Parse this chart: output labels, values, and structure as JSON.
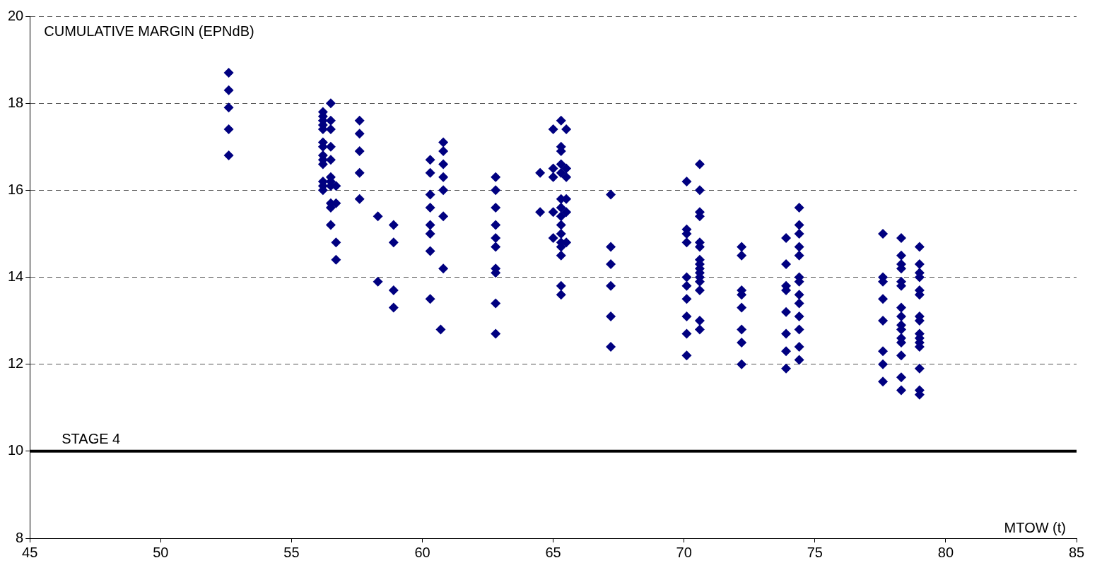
{
  "chart_data": {
    "type": "scatter",
    "xlabel": "MTOW (t)",
    "ylabel": "CUMULATIVE MARGIN (EPNdB)",
    "xlim": [
      45,
      85
    ],
    "xticks": [
      45,
      50,
      55,
      60,
      65,
      70,
      75,
      80,
      85
    ],
    "ylim": [
      8,
      20
    ],
    "yticks": [
      8,
      10,
      12,
      14,
      16,
      18,
      20
    ],
    "grid": "y",
    "marker": "diamond",
    "legend": false,
    "ref_lines": [
      {
        "axis": "y",
        "value": 10,
        "label": "STAGE 4",
        "color": "#000000",
        "line_style": "solid"
      }
    ],
    "series": [
      {
        "color": "#000080",
        "x": [
          52.6,
          52.6,
          52.6,
          52.6,
          52.6,
          56.2,
          56.2,
          56.2,
          56.2,
          56.2,
          56.2,
          56.2,
          56.2,
          56.2,
          56.2,
          56.2,
          56.2,
          56.2,
          56.5,
          56.5,
          56.5,
          56.5,
          56.5,
          56.5,
          56.5,
          56.5,
          56.5,
          56.5,
          56.5,
          56.7,
          56.7,
          56.7,
          56.7,
          57.6,
          57.6,
          57.6,
          57.6,
          57.6,
          58.3,
          58.3,
          58.9,
          58.9,
          58.9,
          58.9,
          60.3,
          60.3,
          60.3,
          60.3,
          60.3,
          60.3,
          60.3,
          60.3,
          60.8,
          60.8,
          60.8,
          60.8,
          60.8,
          60.8,
          60.8,
          60.7,
          62.8,
          62.8,
          62.8,
          62.8,
          62.8,
          62.8,
          62.8,
          62.8,
          62.8,
          62.8,
          64.5,
          64.5,
          65.0,
          65.0,
          65.0,
          65.0,
          65.0,
          65.3,
          65.3,
          65.3,
          65.3,
          65.3,
          65.3,
          65.3,
          65.3,
          65.3,
          65.3,
          65.3,
          65.3,
          65.3,
          65.3,
          65.3,
          65.5,
          65.5,
          65.5,
          65.5,
          65.5,
          65.5,
          67.2,
          67.2,
          67.2,
          67.2,
          67.2,
          67.2,
          70.1,
          70.1,
          70.1,
          70.1,
          70.1,
          70.1,
          70.1,
          70.1,
          70.1,
          70.1,
          70.6,
          70.6,
          70.6,
          70.6,
          70.6,
          70.6,
          70.6,
          70.6,
          70.6,
          70.6,
          70.6,
          70.6,
          70.6,
          70.6,
          70.6,
          72.2,
          72.2,
          72.2,
          72.2,
          72.2,
          72.2,
          72.2,
          72.2,
          73.9,
          73.9,
          73.9,
          73.9,
          73.9,
          73.9,
          73.9,
          73.9,
          74.4,
          74.4,
          74.4,
          74.4,
          74.4,
          74.4,
          74.4,
          74.4,
          74.4,
          74.4,
          74.4,
          74.4,
          74.4,
          77.6,
          77.6,
          77.6,
          77.6,
          77.6,
          77.6,
          77.6,
          77.6,
          78.3,
          78.3,
          78.3,
          78.3,
          78.3,
          78.3,
          78.3,
          78.3,
          78.3,
          78.3,
          78.3,
          78.3,
          78.3,
          78.3,
          78.3,
          79.0,
          79.0,
          79.0,
          79.0,
          79.0,
          79.0,
          79.0,
          79.0,
          79.0,
          79.0,
          79.0,
          79.0,
          79.0,
          79.0,
          79.0
        ],
        "values": [
          18.7,
          18.3,
          17.9,
          17.4,
          16.8,
          17.8,
          17.7,
          17.6,
          17.5,
          17.4,
          17.1,
          17.0,
          16.8,
          16.7,
          16.6,
          16.2,
          16.1,
          16.0,
          18.0,
          17.6,
          17.4,
          17.0,
          16.7,
          16.3,
          16.2,
          16.1,
          15.7,
          15.6,
          15.2,
          16.1,
          15.7,
          14.8,
          14.4,
          17.6,
          17.3,
          16.9,
          16.4,
          15.8,
          15.4,
          13.9,
          15.2,
          14.8,
          13.7,
          13.3,
          16.7,
          16.4,
          15.9,
          15.6,
          15.2,
          15.0,
          14.6,
          13.5,
          17.1,
          16.9,
          16.6,
          16.3,
          16.0,
          15.4,
          14.2,
          12.8,
          16.3,
          16.0,
          15.6,
          15.2,
          14.9,
          14.7,
          14.2,
          14.1,
          13.4,
          12.7,
          16.4,
          15.5,
          17.4,
          16.5,
          16.3,
          15.5,
          14.9,
          17.6,
          17.0,
          16.9,
          16.6,
          16.4,
          15.8,
          15.6,
          15.4,
          15.2,
          15.0,
          14.8,
          14.7,
          14.5,
          13.8,
          13.6,
          17.4,
          16.5,
          16.3,
          15.8,
          15.5,
          14.8,
          15.9,
          14.7,
          14.3,
          13.8,
          13.1,
          12.4,
          16.2,
          15.1,
          15.0,
          14.8,
          14.0,
          13.8,
          13.5,
          13.1,
          12.7,
          12.2,
          16.6,
          16.0,
          15.5,
          15.4,
          14.8,
          14.7,
          14.4,
          14.3,
          14.2,
          14.1,
          14.0,
          13.9,
          13.7,
          13.0,
          12.8,
          14.7,
          14.5,
          13.7,
          13.6,
          13.3,
          12.8,
          12.5,
          12.0,
          14.9,
          14.3,
          13.8,
          13.7,
          13.2,
          12.7,
          12.3,
          11.9,
          15.6,
          15.2,
          15.0,
          14.7,
          14.5,
          14.0,
          13.9,
          13.6,
          13.4,
          13.1,
          12.8,
          12.4,
          12.1,
          15.0,
          14.0,
          13.9,
          13.5,
          13.0,
          12.3,
          12.0,
          11.6,
          14.9,
          14.5,
          14.3,
          14.2,
          13.9,
          13.8,
          13.3,
          13.1,
          12.9,
          12.8,
          12.6,
          12.5,
          12.2,
          11.7,
          11.4,
          14.7,
          14.3,
          14.1,
          14.0,
          13.7,
          13.6,
          13.1,
          13.0,
          12.7,
          12.6,
          12.5,
          12.4,
          11.9,
          11.4,
          11.3
        ]
      }
    ]
  }
}
